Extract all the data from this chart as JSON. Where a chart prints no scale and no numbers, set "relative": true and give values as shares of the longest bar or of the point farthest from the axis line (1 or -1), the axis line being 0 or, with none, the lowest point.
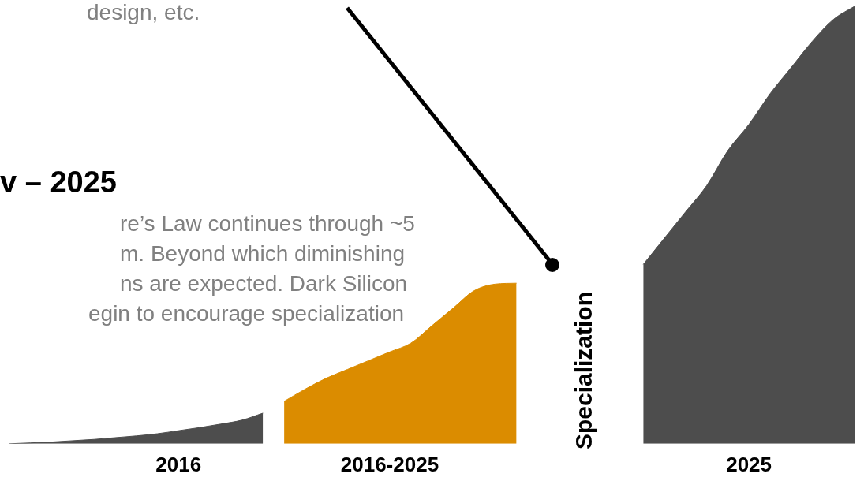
{
  "chart_data": {
    "type": "area",
    "relative": true,
    "grid": false,
    "legend": false,
    "tick_labels": "x",
    "marker": "none",
    "categories": [
      null,
      null,
      null,
      null,
      null,
      null,
      null,
      null,
      "2016",
      null,
      null,
      null,
      null,
      null,
      null,
      null,
      null,
      null,
      "2016-2025",
      null,
      null,
      null,
      null,
      null,
      null,
      null,
      null,
      null,
      null,
      null,
      null,
      null,
      null,
      null,
      null,
      "2025",
      null,
      null,
      null,
      null,
      null
    ],
    "series": [
      {
        "color": "#4d4d4d",
        "values": [
          0.0,
          0.002,
          0.004,
          0.007,
          0.01,
          0.014,
          0.018,
          0.023,
          0.03,
          0.037,
          0.045,
          0.054,
          0.07,
          null,
          null,
          null,
          null,
          null,
          null,
          null,
          null,
          null,
          null,
          null,
          null,
          null,
          null,
          null,
          null,
          null,
          null,
          null,
          null,
          null,
          null,
          null,
          null,
          null,
          null,
          null,
          null
        ]
      },
      {
        "color": "#db8c00",
        "values": [
          null,
          null,
          null,
          null,
          null,
          null,
          null,
          null,
          null,
          null,
          null,
          null,
          null,
          0.097,
          0.125,
          0.15,
          0.17,
          0.19,
          0.21,
          0.23,
          0.27,
          0.31,
          0.35,
          0.365,
          0.367,
          null,
          null,
          null,
          null,
          null,
          null,
          null,
          null,
          null,
          null,
          null,
          null,
          null,
          null,
          null,
          null
        ]
      },
      {
        "color": "#4d4d4d",
        "values": [
          null,
          null,
          null,
          null,
          null,
          null,
          null,
          null,
          null,
          null,
          null,
          null,
          null,
          null,
          null,
          null,
          null,
          null,
          null,
          null,
          null,
          null,
          null,
          null,
          null,
          null,
          null,
          null,
          null,
          null,
          0.41,
          0.47,
          0.53,
          0.59,
          0.67,
          0.73,
          0.8,
          0.86,
          0.92,
          0.97,
          1.0
        ]
      }
    ],
    "annotations": [
      "design, etc.",
      "v – 2025",
      "re’s Law continues through ~5",
      "m. Beyond which diminishing",
      "ns are expected.  Dark Silicon",
      "egin to encourage specialization",
      "Specialization"
    ]
  }
}
